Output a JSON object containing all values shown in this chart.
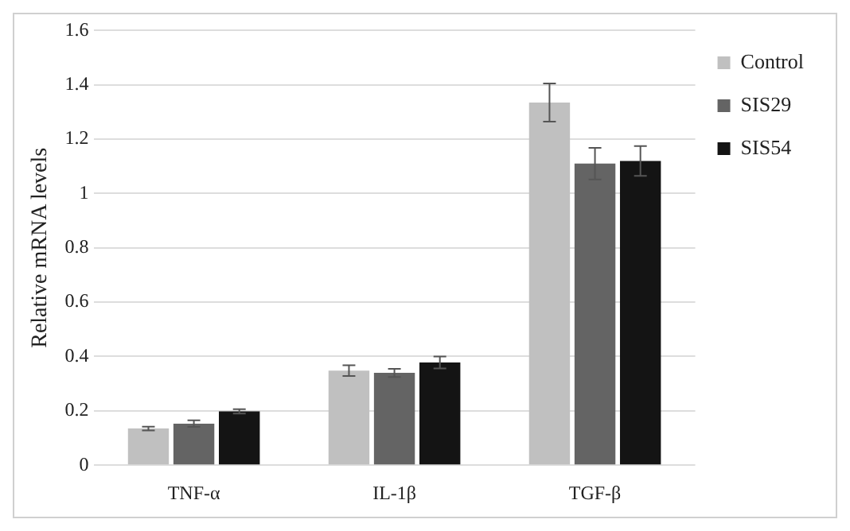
{
  "chart_data": {
    "type": "bar",
    "ylabel": "Relative mRNA levels",
    "categories": [
      "TNF-α",
      "IL-1β",
      "TGF-β"
    ],
    "series": [
      {
        "name": "Control",
        "color": "#c0c0c0",
        "values": [
          0.135,
          0.348,
          1.335
        ],
        "errors": [
          0.007,
          0.02,
          0.07
        ]
      },
      {
        "name": "SIS29",
        "color": "#646464",
        "values": [
          0.153,
          0.34,
          1.11
        ],
        "errors": [
          0.012,
          0.015,
          0.058
        ]
      },
      {
        "name": "SIS54",
        "color": "#141414",
        "values": [
          0.198,
          0.378,
          1.12
        ],
        "errors": [
          0.008,
          0.022,
          0.055
        ]
      }
    ],
    "ylim": [
      0,
      1.6
    ],
    "yticks": [
      0,
      0.2,
      0.4,
      0.6,
      0.8,
      1,
      1.2,
      1.4,
      1.6
    ],
    "grid": "y",
    "legend": "top right"
  }
}
